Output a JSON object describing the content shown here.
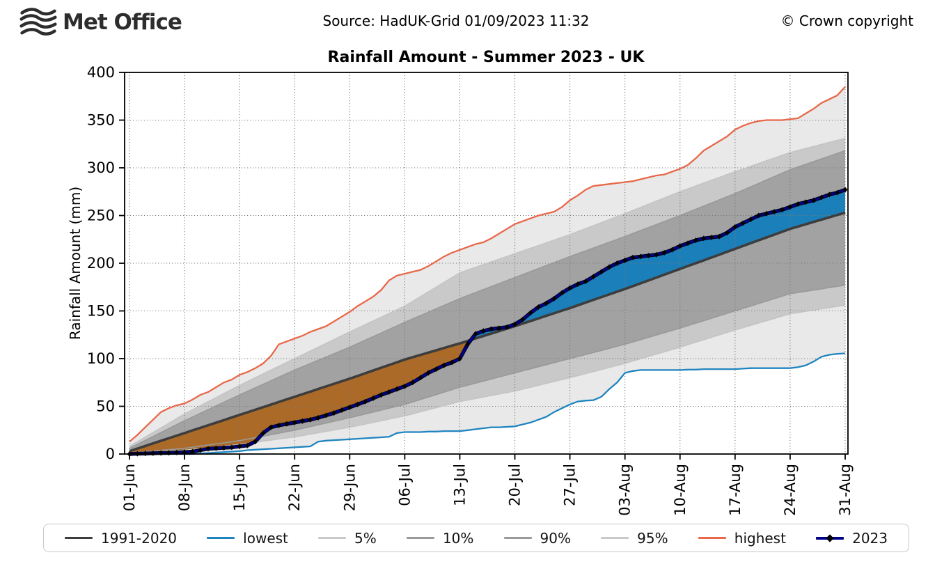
{
  "header": {
    "logo_text": "Met Office",
    "source": "Source: HadUK-Grid 01/09/2023 11:32",
    "copyright": "© Crown copyright"
  },
  "chart_data": {
    "type": "line",
    "title": "Rainfall Amount - Summer 2023 - UK",
    "ylabel": "Rainfall Amount (mm)",
    "ylim": [
      0,
      400
    ],
    "yticks": [
      0,
      50,
      100,
      150,
      200,
      250,
      300,
      350,
      400
    ],
    "xtick_labels": [
      "01-Jun",
      "08-Jun",
      "15-Jun",
      "22-Jun",
      "29-Jun",
      "06-Jul",
      "13-Jul",
      "20-Jul",
      "27-Jul",
      "03-Aug",
      "10-Aug",
      "17-Aug",
      "24-Aug",
      "31-Aug"
    ],
    "xtick_days": [
      0,
      7,
      14,
      21,
      28,
      35,
      42,
      49,
      56,
      63,
      70,
      77,
      84,
      91
    ],
    "days_total": 91,
    "grid": true,
    "legend_position": "bottom",
    "weekly_days": [
      0,
      7,
      14,
      21,
      28,
      35,
      42,
      49,
      56,
      63,
      70,
      77,
      84,
      91
    ],
    "series": {
      "average_1991_2020_weekly": [
        3,
        22,
        41,
        60,
        79,
        99,
        116,
        134,
        153,
        173,
        194,
        215,
        236,
        253
      ],
      "p95_weekly": [
        8,
        42,
        72,
        100,
        128,
        155,
        190,
        210,
        230,
        252,
        275,
        296,
        316,
        331
      ],
      "p90_weekly": [
        6,
        35,
        62,
        88,
        112,
        138,
        163,
        185,
        207,
        228,
        250,
        273,
        298,
        318
      ],
      "p10_weekly": [
        1,
        6,
        14,
        25,
        38,
        52,
        70,
        85,
        100,
        115,
        132,
        150,
        168,
        177
      ],
      "p05_weekly": [
        0.5,
        4,
        10,
        18,
        28,
        40,
        55,
        66,
        80,
        95,
        112,
        130,
        147,
        156
      ],
      "lowest_daily": [
        0,
        0,
        0,
        0,
        0,
        0,
        0,
        0,
        0,
        0.5,
        1,
        1.5,
        2,
        2.5,
        3,
        4,
        4.5,
        5,
        5.5,
        6,
        6.5,
        7,
        7.5,
        8,
        13,
        14,
        14.5,
        15,
        15.5,
        16,
        16.5,
        17,
        17.5,
        18,
        22,
        23,
        23,
        23,
        23.5,
        23.5,
        24,
        24,
        24,
        25,
        26,
        27,
        28,
        28,
        28.5,
        29,
        31,
        33,
        36,
        39,
        44,
        48,
        52,
        55,
        56,
        56.5,
        60,
        68,
        75,
        85,
        87,
        88,
        88,
        88,
        88,
        88,
        88,
        88.5,
        88.5,
        89,
        89,
        89,
        89,
        89,
        89.5,
        90,
        90,
        90,
        90,
        90,
        90,
        91,
        93,
        97,
        102,
        104,
        105,
        105.5
      ],
      "highest_daily": [
        13,
        20,
        28,
        36,
        44,
        48,
        51,
        53,
        57,
        62,
        65,
        70,
        75,
        78,
        83,
        86,
        90,
        95,
        103,
        115,
        118,
        121,
        124,
        128,
        131,
        134,
        139,
        144,
        149,
        155,
        160,
        165,
        172,
        182,
        187,
        189,
        191,
        193,
        197,
        202,
        207,
        211,
        214,
        217,
        220,
        222,
        226,
        231,
        236,
        241,
        244,
        247,
        250,
        252,
        254,
        259,
        266,
        271,
        277,
        281,
        282,
        283,
        284,
        285,
        286,
        288,
        290,
        292,
        293,
        296,
        299,
        303,
        310,
        318,
        323,
        328,
        333,
        340,
        344,
        347,
        349,
        350,
        350,
        350,
        351,
        352,
        357,
        362,
        368,
        372,
        376,
        385
      ],
      "y2023_daily": [
        0,
        0.3,
        0.5,
        0.8,
        1,
        1.2,
        1.5,
        2,
        2.5,
        4,
        5.5,
        6,
        6.5,
        7,
        8,
        9,
        13,
        22,
        28,
        30,
        31.5,
        33,
        34.5,
        36,
        38,
        40.5,
        43,
        46,
        49,
        52,
        55,
        58.5,
        62,
        65,
        68,
        71,
        75,
        80,
        85,
        89,
        93,
        96,
        100,
        115,
        126,
        129,
        131,
        132,
        133,
        136,
        141,
        148,
        154,
        158,
        163,
        169,
        174,
        178,
        181,
        186,
        191,
        196,
        200,
        203,
        206,
        207,
        208,
        209,
        211,
        214,
        218,
        221,
        224,
        226,
        227,
        228,
        232,
        238,
        242,
        246,
        250,
        252,
        254,
        256,
        259,
        262,
        264,
        266,
        269,
        272,
        274,
        277
      ]
    },
    "colors": {
      "average_line": "#3d3d3d",
      "lowest_line": "#1f84bf",
      "highest_line": "#e8684a",
      "y2023_line": "#00008b",
      "marker": "#000000",
      "band_light": "#e9e9e9",
      "band_mid": "#c9c9c9",
      "band_dark": "#a2a2a2",
      "p05_p95_line": "#c4c4c4",
      "p10_p90_line": "#999999",
      "fill_below_average": "#ab6a28",
      "fill_above_average": "#1b7fba",
      "grid": "#7a7a7a",
      "frame": "#000000"
    }
  },
  "legend": {
    "items": [
      {
        "label": "1991-2020",
        "color": "#3d3d3d",
        "height": 3,
        "marker": false
      },
      {
        "label": "lowest",
        "color": "#1f84bf",
        "height": 3,
        "marker": false
      },
      {
        "label": "5%",
        "color": "#c9c9c9",
        "height": 3,
        "marker": false
      },
      {
        "label": "10%",
        "color": "#9a9a9a",
        "height": 3,
        "marker": false
      },
      {
        "label": "90%",
        "color": "#9a9a9a",
        "height": 3,
        "marker": false
      },
      {
        "label": "95%",
        "color": "#c9c9c9",
        "height": 3,
        "marker": false
      },
      {
        "label": "highest",
        "color": "#e8684a",
        "height": 3,
        "marker": false
      },
      {
        "label": "2023",
        "color": "#00008b",
        "height": 4,
        "marker": true
      }
    ]
  }
}
